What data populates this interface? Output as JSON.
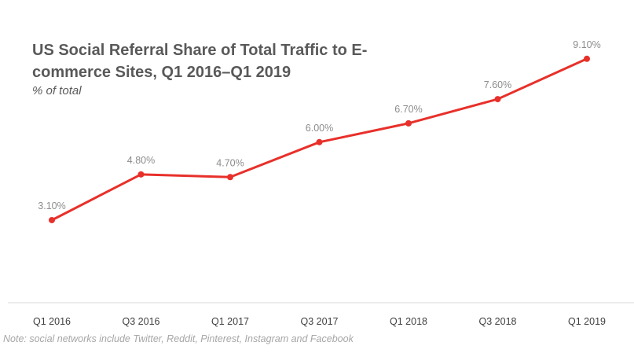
{
  "chart_data": {
    "type": "line",
    "title": "US Social Referral Share of Total Traffic to E-commerce Sites, Q1 2016–Q1 2019",
    "subtitle": "% of total",
    "categories": [
      "Q1 2016",
      "Q3 2016",
      "Q1 2017",
      "Q3 2017",
      "Q1 2018",
      "Q3 2018",
      "Q1 2019"
    ],
    "series": [
      {
        "name": "Social referral share",
        "values": [
          3.1,
          4.8,
          4.7,
          6.0,
          6.7,
          7.6,
          9.1
        ],
        "labels": [
          "3.10%",
          "4.80%",
          "4.70%",
          "6.00%",
          "6.70%",
          "7.60%",
          "9.10%"
        ],
        "color": "#e8302a"
      }
    ],
    "xlabel": "",
    "ylabel": "",
    "ylim": [
      0,
      9.1
    ],
    "grid": false,
    "legend": "none",
    "note": "Note: social networks include Twitter, Reddit, Pinterest, Instagram and Facebook"
  }
}
